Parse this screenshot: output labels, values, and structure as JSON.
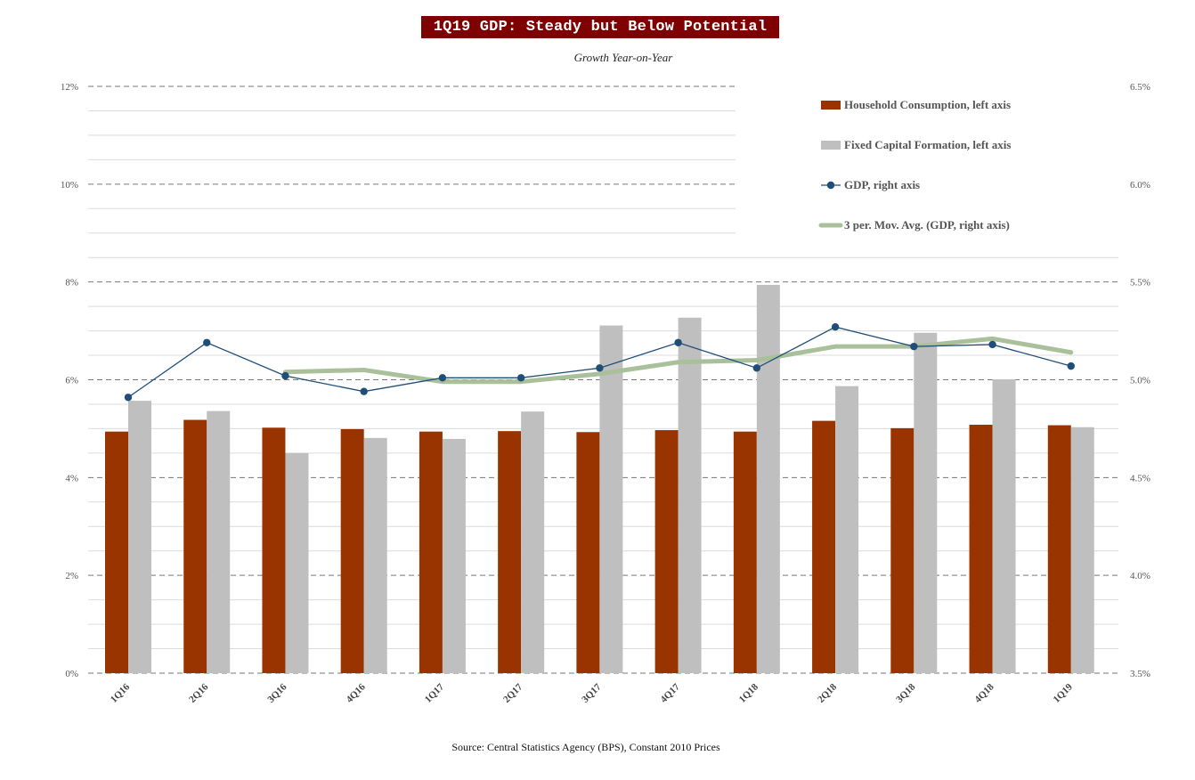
{
  "title": "1Q19 GDP: Steady but Below Potential",
  "subtitle": "Growth Year-on-Year",
  "source": "Source: Central Statistics Agency (BPS), Constant 2010 Prices",
  "colors": {
    "title_bg": "#7f0000",
    "household": "#993300",
    "fixed_capital": "#bfbfbf",
    "gdp": "#1f4e79",
    "moving_avg": "#a9c09a"
  },
  "chart_data": {
    "type": "bar",
    "categories": [
      "1Q16",
      "2Q16",
      "3Q16",
      "4Q16",
      "1Q17",
      "2Q17",
      "3Q17",
      "4Q17",
      "1Q18",
      "2Q18",
      "3Q18",
      "4Q18",
      "1Q19"
    ],
    "left_axis": {
      "min": 0,
      "max": 12,
      "step": 2,
      "ticks": [
        "0%",
        "2%",
        "4%",
        "6%",
        "8%",
        "10%",
        "12%"
      ]
    },
    "right_axis": {
      "min": 3.5,
      "max": 6.5,
      "step": 0.5,
      "ticks": [
        "3.5%",
        "4.0%",
        "4.5%",
        "5.0%",
        "5.5%",
        "6.0%",
        "6.5%"
      ]
    },
    "grid": true,
    "legend_position": "top-right",
    "series": [
      {
        "name": "Household Consumption, left axis",
        "type": "bar",
        "axis": "left",
        "values": [
          4.94,
          5.18,
          5.02,
          4.99,
          4.94,
          4.95,
          4.93,
          4.97,
          4.94,
          5.16,
          5.01,
          5.08,
          5.07
        ]
      },
      {
        "name": "Fixed Capital Formation, left axis",
        "type": "bar",
        "axis": "left",
        "values": [
          5.57,
          5.36,
          4.5,
          4.81,
          4.79,
          5.35,
          7.11,
          7.27,
          7.94,
          5.87,
          6.96,
          6.01,
          5.03
        ]
      },
      {
        "name": "GDP, right axis",
        "type": "line",
        "axis": "right",
        "marker": "circle",
        "values": [
          4.91,
          5.19,
          5.02,
          4.94,
          5.01,
          5.01,
          5.06,
          5.19,
          5.06,
          5.27,
          5.17,
          5.18,
          5.07
        ]
      },
      {
        "name": "3 per. Mov. Avg. (GDP, right axis)",
        "type": "line",
        "axis": "right",
        "values": [
          null,
          null,
          5.04,
          5.05,
          4.99,
          4.99,
          5.03,
          5.09,
          5.1,
          5.17,
          5.17,
          5.21,
          5.14
        ]
      }
    ]
  }
}
